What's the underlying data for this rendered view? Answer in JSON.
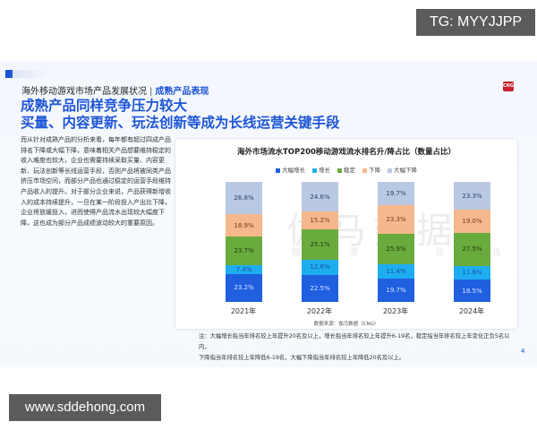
{
  "overlays": {
    "tg_badge": "TG: MYYJJPP",
    "website_badge": "www.sddehong.com"
  },
  "slide": {
    "subtitle": "海外移动游戏市场产品发展状况",
    "separator": "|",
    "subtitle_highlight": "成熟产品表现",
    "logo_text": "CNG",
    "title_line1": "成熟产品同样竞争压力较大",
    "title_line2": "买量、内容更新、玩法创新等成为长线运营关键手段",
    "body_text": "而从针对成熟产品的分析来看，每年都有超过四成产品排名下降或大幅下降，意味着相关产品想要维持稳定的收入难度也较大，企业也需要持续采取买量、内容更新、玩法创新等长线运营手段，否则产品将被同类产品挤压市场空间，而部分产品也通过稳定的运营手段维持产品收入的提升。对于部分企业来说，产品获得新增收入的成本持续提升，一旦在某一阶段投入产出比下降，企业将放缓投入，进而使得产品流水出现较大幅度下降，这也成为部分产品成绩波动较大的重要原因。",
    "watermark": "伽马数据",
    "watermark_sub": "微信游戏产业报告",
    "source": "数据来源：伽马数据（CNG）",
    "notes_line1": "注：大幅增长指当年排名较上年提升20名及以上，增长指当年排名较上年提升6-19名，稳定指当年排名较上年变化正负5名以内，",
    "notes_line2": "下降指当年排名较上年降低6-19名，大幅下降指当年排名较上年降低20名及以上。",
    "page_number": "4"
  },
  "chart_data": {
    "type": "bar",
    "stacked": true,
    "percent_stacked": true,
    "title": "海外市场流水TOP200移动游戏流水排名升/降占比（数量占比）",
    "xlabel": "",
    "ylabel": "",
    "categories": [
      "2021年",
      "2022年",
      "2023年",
      "2024年"
    ],
    "legend_position": "top",
    "grid": false,
    "series": [
      {
        "name": "大幅增长",
        "color": "#1f5fe0",
        "text_color": "#dbe6ff",
        "values": [
          23.2,
          22.5,
          19.7,
          18.5
        ],
        "labels": [
          "23.2%",
          "22.5%",
          "19.7%",
          "18.5%"
        ]
      },
      {
        "name": "增长",
        "color": "#1eaef0",
        "text_color": "#1a4fa0",
        "values": [
          7.4,
          12.6,
          11.4,
          11.6
        ],
        "labels": [
          "7.4%",
          "12.6%",
          "11.4%",
          "11.6%"
        ]
      },
      {
        "name": "稳定",
        "color": "#6aab3d",
        "text_color": "#1e3a10",
        "values": [
          23.7,
          25.1,
          25.9,
          27.5
        ],
        "labels": [
          "23.7%",
          "25.1%",
          "25.9%",
          "27.5%"
        ]
      },
      {
        "name": "下降",
        "color": "#f5b88c",
        "text_color": "#7a3a10",
        "values": [
          18.9,
          15.2,
          23.3,
          19.0
        ],
        "labels": [
          "18.9%",
          "15.2%",
          "23.3%",
          "19.0%"
        ]
      },
      {
        "name": "大幅下降",
        "color": "#b9c9e4",
        "text_color": "#2a3f66",
        "values": [
          26.8,
          24.6,
          19.7,
          23.3
        ],
        "labels": [
          "26.8%",
          "24.6%",
          "19.7%",
          "23.3%"
        ]
      }
    ]
  }
}
